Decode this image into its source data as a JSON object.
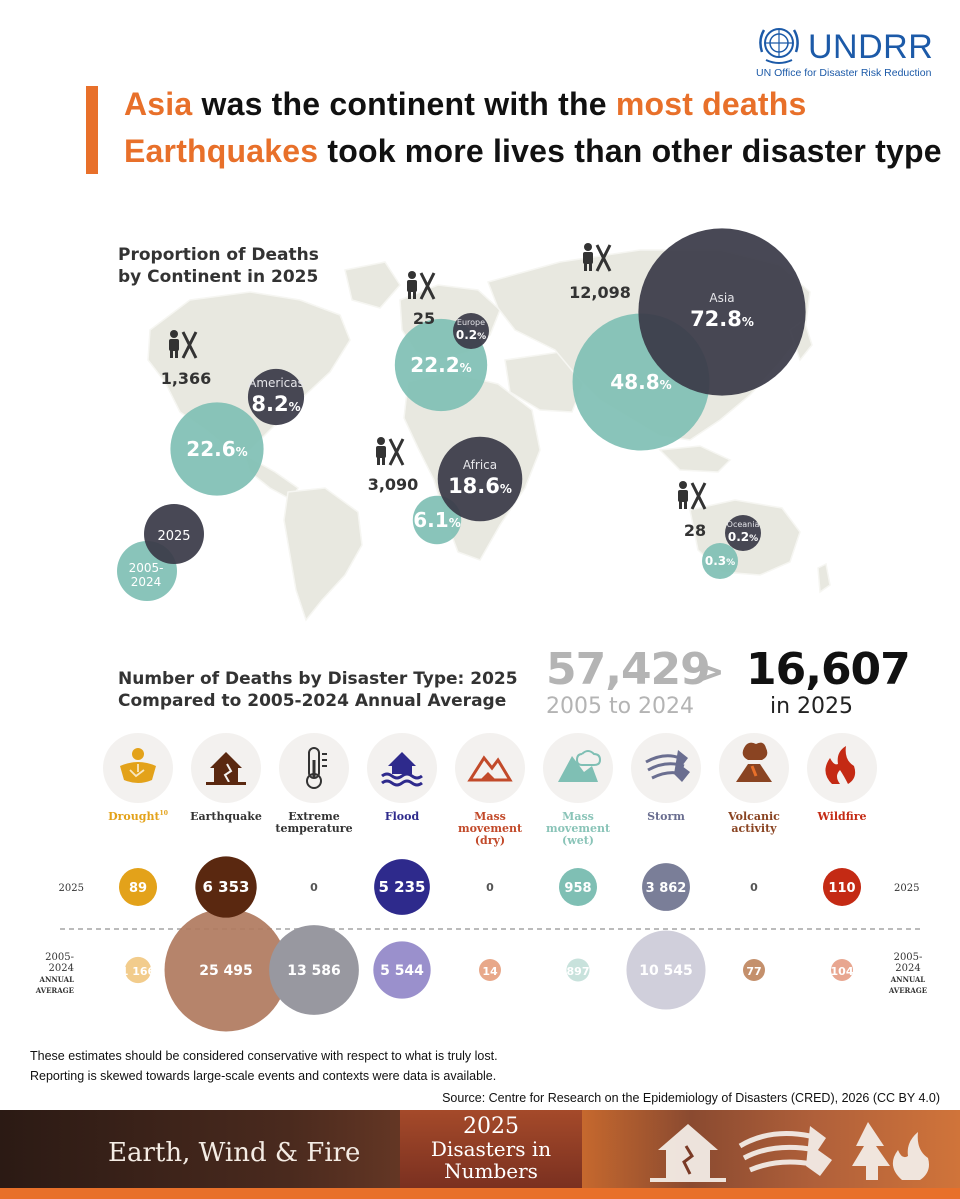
{
  "logo": {
    "word": "UNDRR",
    "subtitle": "UN Office for Disaster Risk Reduction"
  },
  "headline": {
    "line1_highlight1": "Asia",
    "line1_text1": " was the continent with the ",
    "line1_highlight2": "most deaths",
    "line2_highlight": "Earthquakes",
    "line2_text": " took more lives than other disaster type"
  },
  "colors": {
    "accent": "#e8702a",
    "teal": "#7fbfb4",
    "dark": "#3a3a48",
    "land": "#e8e8e0"
  },
  "chart_data": [
    {
      "type": "bubble-map",
      "title_line1": "Proportion of Deaths",
      "title_line2": "by Continent in 2025",
      "legend": {
        "current": "2025",
        "average_line1": "2005-",
        "average_line2": "2024"
      },
      "continents": [
        {
          "name": "Americas",
          "deaths_2025": "1,366",
          "pct_2025": "8.2",
          "pct_avg": "22.6"
        },
        {
          "name": "Europe",
          "deaths_2025": "25",
          "pct_2025": "0.2",
          "pct_avg": "22.2"
        },
        {
          "name": "Africa",
          "deaths_2025": "3,090",
          "pct_2025": "18.6",
          "pct_avg": "6.1"
        },
        {
          "name": "Asia",
          "deaths_2025": "12,098",
          "pct_2025": "72.8",
          "pct_avg": "48.8"
        },
        {
          "name": "Oceania",
          "deaths_2025": "28",
          "pct_2025": "0.2",
          "pct_avg": "0.3"
        }
      ],
      "percent_sign": "%"
    },
    {
      "type": "bubble",
      "title_line1": "Number of Deaths by Disaster Type: 2025",
      "title_line2": "Compared to 2005-2024 Annual Average",
      "row_label_2025": "2025",
      "row_label_avg": [
        "2005-",
        "2024",
        "ANNUAL",
        "AVERAGE"
      ],
      "categories": [
        {
          "label": [
            "Drought"
          ],
          "sup": "10",
          "icon": "drought-icon",
          "v2025": 89,
          "l2025": "89",
          "vavg": 1166,
          "lavg": "1 166",
          "c2025": "#e3a21a",
          "cavg": "#f2cc8c",
          "labcol": "#e3a21a"
        },
        {
          "label": [
            "Earthquake"
          ],
          "sup": "",
          "icon": "earthquake-icon",
          "v2025": 6353,
          "l2025": "6 353",
          "vavg": 25495,
          "lavg": "25 495",
          "c2025": "#5a2810",
          "cavg": "#b07a5e",
          "labcol": "#333333"
        },
        {
          "label": [
            "Extreme",
            "temperature"
          ],
          "sup": "",
          "icon": "thermometer-icon",
          "v2025": 0,
          "l2025": "0",
          "vavg": 13586,
          "lavg": "13 586",
          "c2025": "#999999",
          "cavg": "#9898a0",
          "labcol": "#333333"
        },
        {
          "label": [
            "Flood"
          ],
          "sup": "",
          "icon": "flood-icon",
          "v2025": 5235,
          "l2025": "5 235",
          "vavg": 5544,
          "lavg": "5 544",
          "c2025": "#2e2a8c",
          "cavg": "#9a90cc",
          "labcol": "#2e2a8c"
        },
        {
          "label": [
            "Mass",
            "movement",
            "(dry)"
          ],
          "sup": "",
          "icon": "landslide-dry-icon",
          "v2025": 0,
          "l2025": "0",
          "vavg": 14,
          "lavg": "14",
          "c2025": "#999999",
          "cavg": "#e8a88a",
          "labcol": "#c24a2a"
        },
        {
          "label": [
            "Mass",
            "movement",
            "(wet)"
          ],
          "sup": "",
          "icon": "landslide-wet-icon",
          "v2025": 958,
          "l2025": "958",
          "vavg": 897,
          "lavg": "897",
          "c2025": "#7fbfb4",
          "cavg": "#c8e2dc",
          "labcol": "#8ac4b8"
        },
        {
          "label": [
            "Storm"
          ],
          "sup": "",
          "icon": "storm-icon",
          "v2025": 3862,
          "l2025": "3 862",
          "vavg": 10545,
          "lavg": "10 545",
          "c2025": "#7a7e98",
          "cavg": "#cccbd8",
          "labcol": "#6a6e90"
        },
        {
          "label": [
            "Volcanic",
            "activity"
          ],
          "sup": "",
          "icon": "volcano-icon",
          "v2025": 0,
          "l2025": "0",
          "vavg": 77,
          "lavg": "77",
          "c2025": "#999999",
          "cavg": "#c4906c",
          "labcol": "#8a4422"
        },
        {
          "label": [
            "Wildfire"
          ],
          "sup": "",
          "icon": "wildfire-icon",
          "v2025": 110,
          "l2025": "110",
          "vavg": 104,
          "lavg": "104",
          "c2025": "#c42a14",
          "cavg": "#e8a690",
          "labcol": "#c42a14"
        }
      ]
    }
  ],
  "totals": {
    "avg_value": "57,429",
    "comparator": ">",
    "current_value": "16,607",
    "avg_label": "2005 to 2024",
    "current_label": "in 2025"
  },
  "notes": {
    "line1": "These estimates should be considered conservative with respect to what is truly lost.",
    "line2": "Reporting is skewed towards large-scale events and contexts were data is available.",
    "source": "Source: Centre for Research on the Epidemiology of Disasters (CRED), 2026 (CC BY 4.0)"
  },
  "banner": {
    "left_title": "Earth, Wind & Fire",
    "year": "2025",
    "title_line1": "Disasters in",
    "title_line2": "Numbers"
  }
}
